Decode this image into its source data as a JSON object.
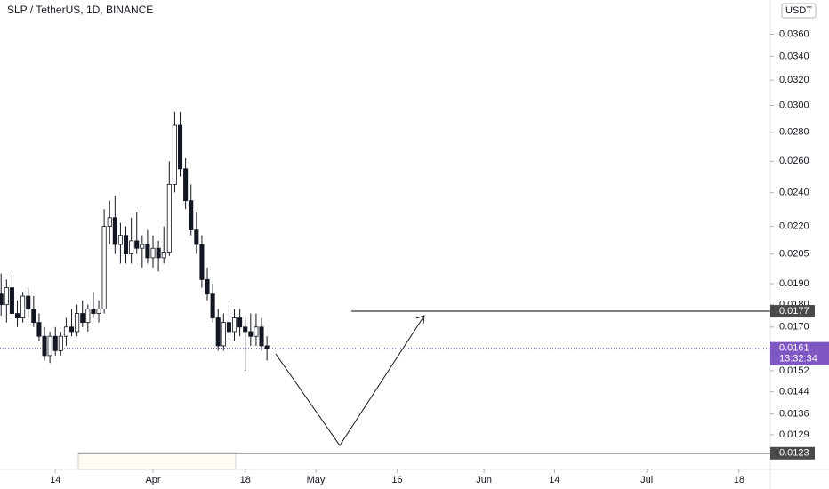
{
  "chart_data": {
    "type": "candlestick",
    "title": "SLP / TetherUS, 1D, BINANCE",
    "currency": "USDT",
    "log_scale": true,
    "up_color": "#ffffff",
    "down_color": "#131722",
    "x": [
      4,
      5,
      6,
      7,
      8,
      9,
      10,
      11,
      12,
      13,
      14,
      15,
      16,
      17,
      18,
      19,
      20,
      21,
      22,
      23,
      24,
      25,
      26,
      27,
      28,
      29,
      30,
      31,
      32,
      33,
      34,
      35,
      36,
      37,
      38,
      39,
      40,
      41,
      42,
      43,
      44,
      45,
      46,
      47,
      48,
      49,
      50,
      51,
      52,
      53
    ],
    "open": [
      0.0185,
      0.018,
      0.0188,
      0.0176,
      0.0174,
      0.0184,
      0.0178,
      0.0172,
      0.0166,
      0.0158,
      0.0166,
      0.016,
      0.0166,
      0.017,
      0.0168,
      0.0176,
      0.0172,
      0.0178,
      0.0176,
      0.0178,
      0.022,
      0.0225,
      0.021,
      0.0215,
      0.0205,
      0.0212,
      0.0208,
      0.021,
      0.0203,
      0.0208,
      0.0203,
      0.0206,
      0.0245,
      0.0285,
      0.0255,
      0.0235,
      0.0218,
      0.021,
      0.0192,
      0.0185,
      0.0174,
      0.0162,
      0.0172,
      0.0168,
      0.0174,
      0.017,
      0.0168,
      0.0166,
      0.017,
      0.0162
    ],
    "high": [
      0.0195,
      0.0192,
      0.0196,
      0.0182,
      0.0186,
      0.0188,
      0.0184,
      0.0176,
      0.017,
      0.0168,
      0.017,
      0.0168,
      0.0174,
      0.0178,
      0.018,
      0.0182,
      0.018,
      0.0186,
      0.0182,
      0.023,
      0.0235,
      0.0238,
      0.0222,
      0.022,
      0.0225,
      0.0228,
      0.0215,
      0.0218,
      0.0215,
      0.0212,
      0.022,
      0.026,
      0.0295,
      0.0295,
      0.0262,
      0.0245,
      0.0228,
      0.0215,
      0.0198,
      0.019,
      0.0178,
      0.0176,
      0.018,
      0.0178,
      0.0178,
      0.0174,
      0.0176,
      0.0176,
      0.0174,
      0.0166
    ],
    "low": [
      0.0175,
      0.0172,
      0.0178,
      0.017,
      0.0172,
      0.0174,
      0.017,
      0.0164,
      0.0156,
      0.0155,
      0.0158,
      0.0158,
      0.0162,
      0.0166,
      0.0166,
      0.017,
      0.0168,
      0.0174,
      0.0172,
      0.0176,
      0.021,
      0.0205,
      0.02,
      0.02,
      0.02,
      0.0205,
      0.0198,
      0.02,
      0.0198,
      0.0196,
      0.02,
      0.0204,
      0.024,
      0.025,
      0.023,
      0.0215,
      0.0205,
      0.0188,
      0.0182,
      0.0172,
      0.016,
      0.016,
      0.0166,
      0.0164,
      0.0166,
      0.0152,
      0.0162,
      0.0162,
      0.016,
      0.0156
    ],
    "close": [
      0.018,
      0.0188,
      0.0176,
      0.0174,
      0.0184,
      0.0178,
      0.0172,
      0.0166,
      0.0158,
      0.0166,
      0.016,
      0.0166,
      0.017,
      0.0168,
      0.0176,
      0.0172,
      0.0178,
      0.0176,
      0.0178,
      0.022,
      0.0225,
      0.021,
      0.0215,
      0.0205,
      0.0212,
      0.0208,
      0.021,
      0.0203,
      0.0208,
      0.0203,
      0.0206,
      0.0245,
      0.0285,
      0.0255,
      0.0235,
      0.0218,
      0.021,
      0.0192,
      0.0185,
      0.0174,
      0.0162,
      0.0172,
      0.0168,
      0.0174,
      0.017,
      0.0168,
      0.0166,
      0.017,
      0.0162,
      0.0161
    ],
    "xlim": [
      3.8,
      145.6
    ],
    "xticks": [
      14,
      {
        "value": 32,
        "label": "Apr"
      },
      {
        "value": 49,
        "label": "18"
      },
      {
        "value": 62,
        "label": "May"
      },
      {
        "value": 77,
        "label": "16"
      },
      {
        "value": 93,
        "label": "Jun"
      },
      {
        "value": 106,
        "label": "14"
      },
      {
        "value": 123,
        "label": "Jul"
      },
      {
        "value": 140,
        "label": "18"
      }
    ],
    "ylim": [
      0.0118,
      0.0393
    ],
    "yticks": [
      {
        "value": 0.036,
        "label": "0.0360"
      },
      {
        "value": 0.034,
        "label": "0.0340"
      },
      {
        "value": 0.032,
        "label": "0.0320"
      },
      {
        "value": 0.03,
        "label": "0.0300"
      },
      {
        "value": 0.028,
        "label": "0.0280"
      },
      {
        "value": 0.026,
        "label": "0.0260"
      },
      {
        "value": 0.024,
        "label": "0.0240"
      },
      {
        "value": 0.022,
        "label": "0.0220"
      },
      0.0205,
      {
        "value": 0.019,
        "label": "0.0190"
      },
      {
        "value": 0.018,
        "label": "0.0180"
      },
      {
        "value": 0.017,
        "label": "0.0170"
      },
      0.0152,
      0.0144,
      0.0136,
      0.0129
    ],
    "levels": [
      0.0177,
      0.0123
    ],
    "last_price": 0.0161,
    "countdown": "13:32:34"
  }
}
